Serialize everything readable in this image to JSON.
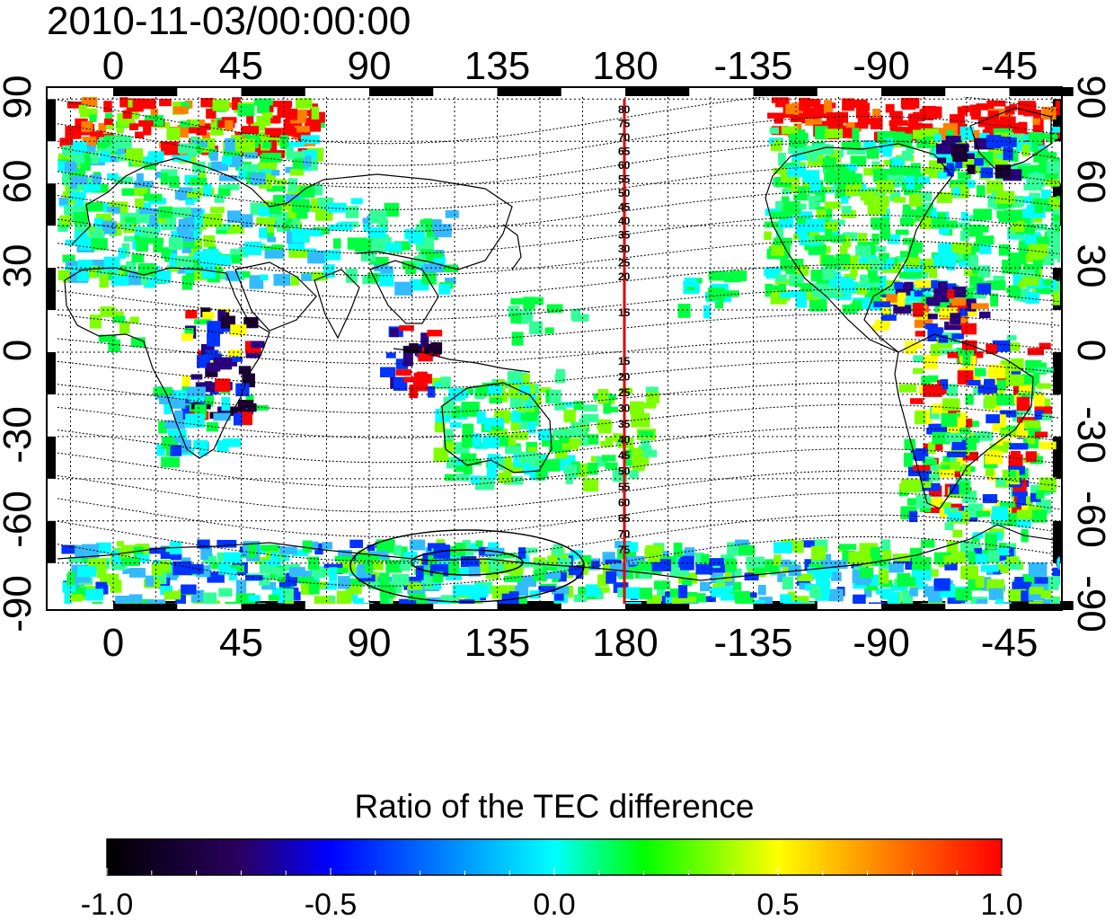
{
  "title": "2010-11-03/00:00:00",
  "x_ticks_top": [
    "0",
    "45",
    "90",
    "135",
    "180",
    "-135",
    "-90",
    "-45"
  ],
  "x_ticks_bottom": [
    "0",
    "45",
    "90",
    "135",
    "180",
    "-135",
    "-90",
    "-45"
  ],
  "y_ticks_left": [
    "90",
    "60",
    "30",
    "0",
    "-30",
    "-60",
    "-90"
  ],
  "y_ticks_right": [
    "90",
    "60",
    "30",
    "0",
    "-30",
    "-60",
    "-90"
  ],
  "contour_labels_north": [
    "80",
    "75",
    "70",
    "65",
    "60",
    "55",
    "50",
    "45",
    "40",
    "35",
    "30",
    "25",
    "20",
    "15"
  ],
  "contour_labels_south": [
    "15",
    "20",
    "25",
    "30",
    "35",
    "40",
    "45",
    "50",
    "55",
    "60",
    "65",
    "70",
    "75"
  ],
  "colorbar": {
    "title": "Ratio of the TEC difference",
    "ticks": [
      "-1.0",
      "-0.5",
      "0.0",
      "0.5",
      "1.0"
    ],
    "range": [
      -1.0,
      1.0
    ],
    "colormap": [
      "#000000",
      "#2a0060",
      "#0000ff",
      "#00ffff",
      "#00ff00",
      "#ffff00",
      "#ff8000",
      "#ff0000"
    ]
  },
  "map": {
    "meridian_marker_lon": 180,
    "meridian_marker_color": "#dd0000",
    "grid": true,
    "coastlines": true
  }
}
